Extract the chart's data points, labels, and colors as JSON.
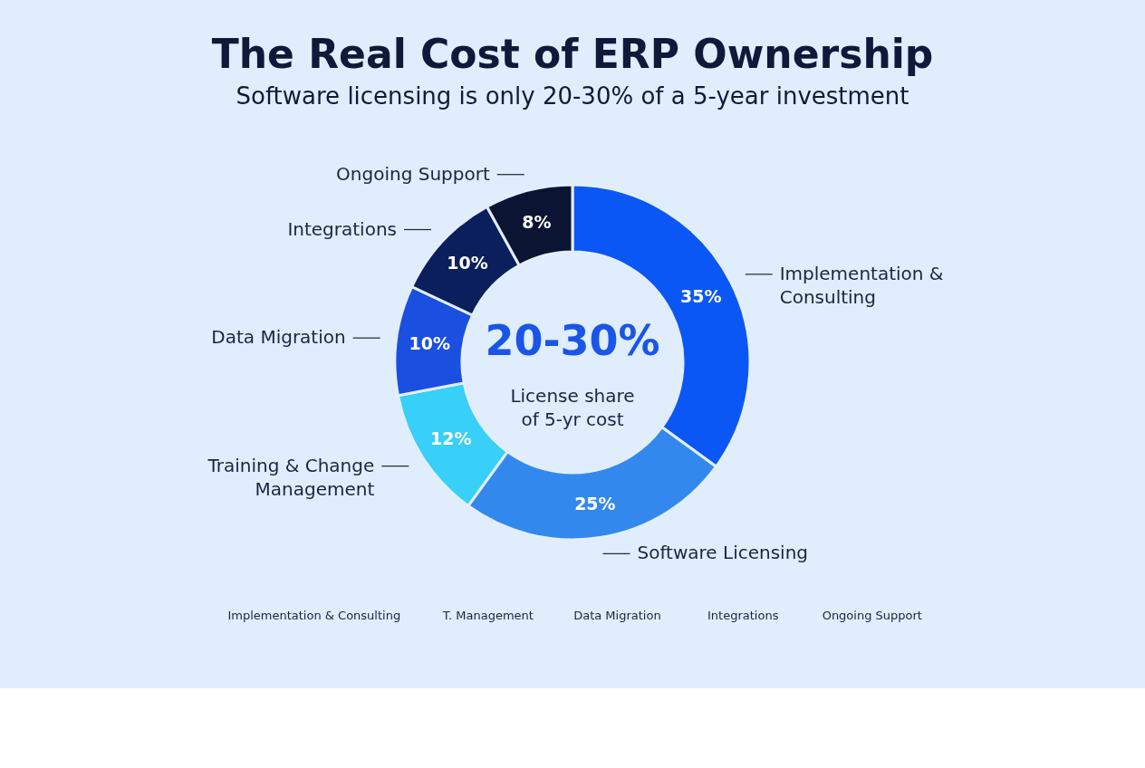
{
  "chart_data": {
    "type": "donut",
    "title": "The Real Cost of ERP Ownership",
    "subtitle": "Software licensing is only 20-30% of a 5-year investment",
    "categories": [
      "Implementation & Consulting",
      "Software Licensing",
      "Training & Change Management",
      "Data Migration",
      "Integrations",
      "Ongoing Support"
    ],
    "values": [
      35,
      25,
      12,
      10,
      10,
      8
    ],
    "value_labels": [
      "35%",
      "25%",
      "12%",
      "10%",
      "10%",
      "8%"
    ],
    "colors": [
      "#0a57f5",
      "#3388ee",
      "#38cff8",
      "#1a4fe0",
      "#0a1f5c",
      "#0b1533"
    ],
    "annotations": [
      "20-30%",
      "License share of 5-yr cost",
      "Implementation & Consulting",
      "T. Management",
      "Data Migration",
      "Integrations",
      "Ongoing Support"
    ]
  }
}
